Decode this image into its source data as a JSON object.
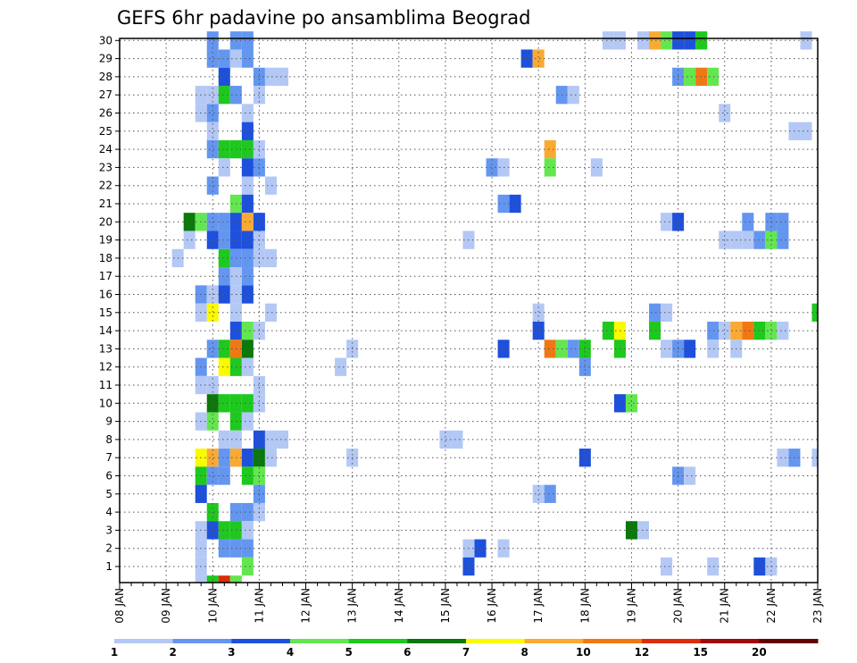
{
  "chart_data": {
    "type": "heatmap",
    "title": "GEFS 6hr padavine po ansamblima Beograd",
    "y_ticks": [
      "1",
      "2",
      "3",
      "4",
      "5",
      "6",
      "7",
      "8",
      "9",
      "10",
      "11",
      "12",
      "13",
      "14",
      "15",
      "16",
      "17",
      "18",
      "19",
      "20",
      "21",
      "22",
      "23",
      "24",
      "25",
      "26",
      "27",
      "28",
      "29",
      "30"
    ],
    "x_ticks": [
      "08 JAN",
      "09 JAN",
      "10 JAN",
      "11 JAN",
      "12 JAN",
      "13 JAN",
      "14 JAN",
      "15 JAN",
      "16 JAN",
      "17 JAN",
      "18 JAN",
      "19 JAN",
      "20 JAN",
      "21 JAN",
      "22 JAN",
      "23 JAN"
    ],
    "x_range": [
      "08 JAN 00UTC",
      "23 JAN 00UTC"
    ],
    "y_range": [
      1,
      30
    ],
    "grid": true,
    "colorbar": {
      "ticks": [
        "1",
        "2",
        "3",
        "4",
        "5",
        "6",
        "7",
        "8",
        "10",
        "12",
        "15",
        "20"
      ],
      "colors": [
        "#b4c8f5",
        "#6496f0",
        "#1e50dc",
        "#64e650",
        "#1ec81e",
        "#0a780a",
        "#fafa00",
        "#faaa32",
        "#f07814",
        "#dc2d0a",
        "#a00a0a",
        "#640000"
      ]
    },
    "cells": [
      {
        "d": "10 JAN 00",
        "m": 30,
        "c": 2
      },
      {
        "d": "10 JAN 12",
        "m": 30,
        "c": 2
      },
      {
        "d": "10 JAN 18",
        "m": 30,
        "c": 2
      },
      {
        "d": "18 JAN 12",
        "m": 30,
        "c": 1
      },
      {
        "d": "18 JAN 18",
        "m": 30,
        "c": 1
      },
      {
        "d": "19 JAN 06",
        "m": 30,
        "c": 1
      },
      {
        "d": "19 JAN 12",
        "m": 30,
        "c": 8
      },
      {
        "d": "19 JAN 18",
        "m": 30,
        "c": 4
      },
      {
        "d": "20 JAN 00",
        "m": 30,
        "c": 3
      },
      {
        "d": "20 JAN 06",
        "m": 30,
        "c": 3
      },
      {
        "d": "20 JAN 12",
        "m": 30,
        "c": 5
      },
      {
        "d": "22 JAN 18",
        "m": 30,
        "c": 1
      },
      {
        "d": "10 JAN 00",
        "m": 29,
        "c": 2
      },
      {
        "d": "10 JAN 06",
        "m": 29,
        "c": 2
      },
      {
        "d": "10 JAN 12",
        "m": 29,
        "c": 1
      },
      {
        "d": "10 JAN 18",
        "m": 29,
        "c": 2
      },
      {
        "d": "16 JAN 18",
        "m": 29,
        "c": 3
      },
      {
        "d": "17 JAN 00",
        "m": 29,
        "c": 8
      },
      {
        "d": "10 JAN 06",
        "m": 28,
        "c": 3
      },
      {
        "d": "11 JAN 00",
        "m": 28,
        "c": 2
      },
      {
        "d": "11 JAN 06",
        "m": 28,
        "c": 1
      },
      {
        "d": "11 JAN 12",
        "m": 28,
        "c": 1
      },
      {
        "d": "20 JAN 00",
        "m": 28,
        "c": 2
      },
      {
        "d": "20 JAN 06",
        "m": 28,
        "c": 4
      },
      {
        "d": "20 JAN 12",
        "m": 28,
        "c": 9
      },
      {
        "d": "20 JAN 18",
        "m": 28,
        "c": 4
      },
      {
        "d": "09 JAN 18",
        "m": 27,
        "c": 1
      },
      {
        "d": "10 JAN 00",
        "m": 27,
        "c": 1
      },
      {
        "d": "10 JAN 06",
        "m": 27,
        "c": 5
      },
      {
        "d": "10 JAN 12",
        "m": 27,
        "c": 2
      },
      {
        "d": "11 JAN 00",
        "m": 27,
        "c": 1
      },
      {
        "d": "17 JAN 12",
        "m": 27,
        "c": 2
      },
      {
        "d": "17 JAN 18",
        "m": 27,
        "c": 1
      },
      {
        "d": "09 JAN 18",
        "m": 26,
        "c": 1
      },
      {
        "d": "10 JAN 00",
        "m": 26,
        "c": 2
      },
      {
        "d": "10 JAN 18",
        "m": 26,
        "c": 1
      },
      {
        "d": "21 JAN 00",
        "m": 26,
        "c": 1
      },
      {
        "d": "10 JAN 00",
        "m": 25,
        "c": 1
      },
      {
        "d": "10 JAN 18",
        "m": 25,
        "c": 3
      },
      {
        "d": "22 JAN 12",
        "m": 25,
        "c": 1
      },
      {
        "d": "22 JAN 18",
        "m": 25,
        "c": 1
      },
      {
        "d": "10 JAN 00",
        "m": 24,
        "c": 2
      },
      {
        "d": "10 JAN 06",
        "m": 24,
        "c": 5
      },
      {
        "d": "10 JAN 12",
        "m": 24,
        "c": 5
      },
      {
        "d": "10 JAN 18",
        "m": 24,
        "c": 5
      },
      {
        "d": "11 JAN 00",
        "m": 24,
        "c": 1
      },
      {
        "d": "17 JAN 06",
        "m": 24,
        "c": 8
      },
      {
        "d": "10 JAN 06",
        "m": 23,
        "c": 1
      },
      {
        "d": "10 JAN 18",
        "m": 23,
        "c": 3
      },
      {
        "d": "11 JAN 00",
        "m": 23,
        "c": 2
      },
      {
        "d": "16 JAN 00",
        "m": 23,
        "c": 2
      },
      {
        "d": "16 JAN 06",
        "m": 23,
        "c": 1
      },
      {
        "d": "17 JAN 06",
        "m": 23,
        "c": 4
      },
      {
        "d": "18 JAN 06",
        "m": 23,
        "c": 1
      },
      {
        "d": "10 JAN 00",
        "m": 22,
        "c": 2
      },
      {
        "d": "10 JAN 18",
        "m": 22,
        "c": 1
      },
      {
        "d": "11 JAN 06",
        "m": 22,
        "c": 1
      },
      {
        "d": "10 JAN 12",
        "m": 21,
        "c": 4
      },
      {
        "d": "10 JAN 18",
        "m": 21,
        "c": 3
      },
      {
        "d": "16 JAN 06",
        "m": 21,
        "c": 2
      },
      {
        "d": "16 JAN 12",
        "m": 21,
        "c": 3
      },
      {
        "d": "09 JAN 12",
        "m": 20,
        "c": 6
      },
      {
        "d": "09 JAN 18",
        "m": 20,
        "c": 4
      },
      {
        "d": "10 JAN 00",
        "m": 20,
        "c": 2
      },
      {
        "d": "10 JAN 06",
        "m": 20,
        "c": 2
      },
      {
        "d": "10 JAN 12",
        "m": 20,
        "c": 3
      },
      {
        "d": "10 JAN 18",
        "m": 20,
        "c": 8
      },
      {
        "d": "11 JAN 00",
        "m": 20,
        "c": 3
      },
      {
        "d": "19 JAN 18",
        "m": 20,
        "c": 1
      },
      {
        "d": "20 JAN 00",
        "m": 20,
        "c": 3
      },
      {
        "d": "21 JAN 12",
        "m": 20,
        "c": 2
      },
      {
        "d": "22 JAN 00",
        "m": 20,
        "c": 2
      },
      {
        "d": "22 JAN 06",
        "m": 20,
        "c": 2
      },
      {
        "d": "09 JAN 12",
        "m": 19,
        "c": 1
      },
      {
        "d": "10 JAN 00",
        "m": 19,
        "c": 3
      },
      {
        "d": "10 JAN 06",
        "m": 19,
        "c": 2
      },
      {
        "d": "10 JAN 12",
        "m": 19,
        "c": 3
      },
      {
        "d": "10 JAN 18",
        "m": 19,
        "c": 3
      },
      {
        "d": "11 JAN 00",
        "m": 19,
        "c": 1
      },
      {
        "d": "15 JAN 12",
        "m": 19,
        "c": 1
      },
      {
        "d": "21 JAN 00",
        "m": 19,
        "c": 1
      },
      {
        "d": "21 JAN 06",
        "m": 19,
        "c": 1
      },
      {
        "d": "21 JAN 12",
        "m": 19,
        "c": 1
      },
      {
        "d": "21 JAN 18",
        "m": 19,
        "c": 2
      },
      {
        "d": "22 JAN 00",
        "m": 19,
        "c": 4
      },
      {
        "d": "22 JAN 06",
        "m": 19,
        "c": 2
      },
      {
        "d": "09 JAN 06",
        "m": 18,
        "c": 1
      },
      {
        "d": "10 JAN 06",
        "m": 18,
        "c": 5
      },
      {
        "d": "10 JAN 12",
        "m": 18,
        "c": 2
      },
      {
        "d": "10 JAN 18",
        "m": 18,
        "c": 2
      },
      {
        "d": "11 JAN 00",
        "m": 18,
        "c": 1
      },
      {
        "d": "11 JAN 06",
        "m": 18,
        "c": 1
      },
      {
        "d": "10 JAN 06",
        "m": 17,
        "c": 2
      },
      {
        "d": "10 JAN 12",
        "m": 17,
        "c": 1
      },
      {
        "d": "10 JAN 18",
        "m": 17,
        "c": 2
      },
      {
        "d": "09 JAN 18",
        "m": 16,
        "c": 2
      },
      {
        "d": "10 JAN 00",
        "m": 16,
        "c": 1
      },
      {
        "d": "10 JAN 06",
        "m": 16,
        "c": 3
      },
      {
        "d": "10 JAN 12",
        "m": 16,
        "c": 1
      },
      {
        "d": "10 JAN 18",
        "m": 16,
        "c": 3
      },
      {
        "d": "09 JAN 18",
        "m": 15,
        "c": 1
      },
      {
        "d": "10 JAN 00",
        "m": 15,
        "c": 7
      },
      {
        "d": "10 JAN 12",
        "m": 15,
        "c": 1
      },
      {
        "d": "11 JAN 06",
        "m": 15,
        "c": 1
      },
      {
        "d": "17 JAN 00",
        "m": 15,
        "c": 1
      },
      {
        "d": "19 JAN 12",
        "m": 15,
        "c": 2
      },
      {
        "d": "19 JAN 18",
        "m": 15,
        "c": 1
      },
      {
        "d": "23 JAN 00",
        "m": 15,
        "c": 5
      },
      {
        "d": "10 JAN 12",
        "m": 14,
        "c": 3
      },
      {
        "d": "10 JAN 18",
        "m": 14,
        "c": 4
      },
      {
        "d": "11 JAN 00",
        "m": 14,
        "c": 1
      },
      {
        "d": "17 JAN 00",
        "m": 14,
        "c": 3
      },
      {
        "d": "18 JAN 12",
        "m": 14,
        "c": 5
      },
      {
        "d": "18 JAN 18",
        "m": 14,
        "c": 7
      },
      {
        "d": "19 JAN 12",
        "m": 14,
        "c": 5
      },
      {
        "d": "20 JAN 18",
        "m": 14,
        "c": 2
      },
      {
        "d": "21 JAN 00",
        "m": 14,
        "c": 1
      },
      {
        "d": "21 JAN 06",
        "m": 14,
        "c": 8
      },
      {
        "d": "21 JAN 12",
        "m": 14,
        "c": 9
      },
      {
        "d": "21 JAN 18",
        "m": 14,
        "c": 5
      },
      {
        "d": "22 JAN 00",
        "m": 14,
        "c": 4
      },
      {
        "d": "22 JAN 06",
        "m": 14,
        "c": 1
      },
      {
        "d": "10 JAN 00",
        "m": 13,
        "c": 2
      },
      {
        "d": "10 JAN 06",
        "m": 13,
        "c": 5
      },
      {
        "d": "10 JAN 12",
        "m": 13,
        "c": 9
      },
      {
        "d": "10 JAN 18",
        "m": 13,
        "c": 6
      },
      {
        "d": "13 JAN 00",
        "m": 13,
        "c": 1
      },
      {
        "d": "16 JAN 06",
        "m": 13,
        "c": 3
      },
      {
        "d": "17 JAN 06",
        "m": 13,
        "c": 9
      },
      {
        "d": "17 JAN 12",
        "m": 13,
        "c": 4
      },
      {
        "d": "17 JAN 18",
        "m": 13,
        "c": 2
      },
      {
        "d": "18 JAN 00",
        "m": 13,
        "c": 5
      },
      {
        "d": "18 JAN 18",
        "m": 13,
        "c": 5
      },
      {
        "d": "19 JAN 18",
        "m": 13,
        "c": 1
      },
      {
        "d": "20 JAN 00",
        "m": 13,
        "c": 2
      },
      {
        "d": "20 JAN 06",
        "m": 13,
        "c": 3
      },
      {
        "d": "20 JAN 18",
        "m": 13,
        "c": 1
      },
      {
        "d": "21 JAN 06",
        "m": 13,
        "c": 1
      },
      {
        "d": "09 JAN 18",
        "m": 12,
        "c": 2
      },
      {
        "d": "10 JAN 06",
        "m": 12,
        "c": 7
      },
      {
        "d": "10 JAN 12",
        "m": 12,
        "c": 5
      },
      {
        "d": "10 JAN 18",
        "m": 12,
        "c": 1
      },
      {
        "d": "12 JAN 18",
        "m": 12,
        "c": 1
      },
      {
        "d": "18 JAN 00",
        "m": 12,
        "c": 2
      },
      {
        "d": "09 JAN 18",
        "m": 11,
        "c": 1
      },
      {
        "d": "10 JAN 00",
        "m": 11,
        "c": 1
      },
      {
        "d": "11 JAN 00",
        "m": 11,
        "c": 1
      },
      {
        "d": "10 JAN 00",
        "m": 10,
        "c": 6
      },
      {
        "d": "10 JAN 06",
        "m": 10,
        "c": 5
      },
      {
        "d": "10 JAN 12",
        "m": 10,
        "c": 5
      },
      {
        "d": "10 JAN 18",
        "m": 10,
        "c": 5
      },
      {
        "d": "11 JAN 00",
        "m": 10,
        "c": 1
      },
      {
        "d": "18 JAN 18",
        "m": 10,
        "c": 3
      },
      {
        "d": "19 JAN 00",
        "m": 10,
        "c": 4
      },
      {
        "d": "09 JAN 18",
        "m": 9,
        "c": 1
      },
      {
        "d": "10 JAN 00",
        "m": 9,
        "c": 4
      },
      {
        "d": "10 JAN 12",
        "m": 9,
        "c": 5
      },
      {
        "d": "10 JAN 18",
        "m": 9,
        "c": 1
      },
      {
        "d": "10 JAN 06",
        "m": 8,
        "c": 1
      },
      {
        "d": "10 JAN 12",
        "m": 8,
        "c": 1
      },
      {
        "d": "11 JAN 00",
        "m": 8,
        "c": 3
      },
      {
        "d": "11 JAN 06",
        "m": 8,
        "c": 1
      },
      {
        "d": "11 JAN 12",
        "m": 8,
        "c": 1
      },
      {
        "d": "15 JAN 00",
        "m": 8,
        "c": 1
      },
      {
        "d": "15 JAN 06",
        "m": 8,
        "c": 1
      },
      {
        "d": "09 JAN 18",
        "m": 7,
        "c": 7
      },
      {
        "d": "10 JAN 00",
        "m": 7,
        "c": 8
      },
      {
        "d": "10 JAN 06",
        "m": 7,
        "c": 2
      },
      {
        "d": "10 JAN 12",
        "m": 7,
        "c": 8
      },
      {
        "d": "10 JAN 18",
        "m": 7,
        "c": 3
      },
      {
        "d": "11 JAN 00",
        "m": 7,
        "c": 6
      },
      {
        "d": "11 JAN 06",
        "m": 7,
        "c": 1
      },
      {
        "d": "13 JAN 00",
        "m": 7,
        "c": 1
      },
      {
        "d": "18 JAN 00",
        "m": 7,
        "c": 3
      },
      {
        "d": "22 JAN 06",
        "m": 7,
        "c": 1
      },
      {
        "d": "22 JAN 12",
        "m": 7,
        "c": 2
      },
      {
        "d": "23 JAN 00",
        "m": 7,
        "c": 1
      },
      {
        "d": "09 JAN 18",
        "m": 6,
        "c": 5
      },
      {
        "d": "10 JAN 00",
        "m": 6,
        "c": 2
      },
      {
        "d": "10 JAN 06",
        "m": 6,
        "c": 2
      },
      {
        "d": "10 JAN 18",
        "m": 6,
        "c": 5
      },
      {
        "d": "11 JAN 00",
        "m": 6,
        "c": 4
      },
      {
        "d": "20 JAN 00",
        "m": 6,
        "c": 2
      },
      {
        "d": "20 JAN 06",
        "m": 6,
        "c": 1
      },
      {
        "d": "09 JAN 18",
        "m": 5,
        "c": 3
      },
      {
        "d": "11 JAN 00",
        "m": 5,
        "c": 2
      },
      {
        "d": "17 JAN 00",
        "m": 5,
        "c": 1
      },
      {
        "d": "17 JAN 06",
        "m": 5,
        "c": 2
      },
      {
        "d": "10 JAN 00",
        "m": 4,
        "c": 5
      },
      {
        "d": "10 JAN 12",
        "m": 4,
        "c": 2
      },
      {
        "d": "10 JAN 18",
        "m": 4,
        "c": 2
      },
      {
        "d": "11 JAN 00",
        "m": 4,
        "c": 1
      },
      {
        "d": "09 JAN 18",
        "m": 3,
        "c": 1
      },
      {
        "d": "10 JAN 00",
        "m": 3,
        "c": 3
      },
      {
        "d": "10 JAN 06",
        "m": 3,
        "c": 5
      },
      {
        "d": "10 JAN 12",
        "m": 3,
        "c": 5
      },
      {
        "d": "10 JAN 18",
        "m": 3,
        "c": 1
      },
      {
        "d": "19 JAN 00",
        "m": 3,
        "c": 6
      },
      {
        "d": "19 JAN 06",
        "m": 3,
        "c": 1
      },
      {
        "d": "09 JAN 18",
        "m": 2,
        "c": 1
      },
      {
        "d": "10 JAN 06",
        "m": 2,
        "c": 2
      },
      {
        "d": "10 JAN 12",
        "m": 2,
        "c": 2
      },
      {
        "d": "10 JAN 18",
        "m": 2,
        "c": 2
      },
      {
        "d": "15 JAN 12",
        "m": 2,
        "c": 1
      },
      {
        "d": "15 JAN 18",
        "m": 2,
        "c": 3
      },
      {
        "d": "16 JAN 06",
        "m": 2,
        "c": 1
      },
      {
        "d": "09 JAN 18",
        "m": 1,
        "c": 1
      },
      {
        "d": "10 JAN 18",
        "m": 1,
        "c": 4
      },
      {
        "d": "15 JAN 12",
        "m": 1,
        "c": 3
      },
      {
        "d": "19 JAN 18",
        "m": 1,
        "c": 1
      },
      {
        "d": "20 JAN 18",
        "m": 1,
        "c": 1
      },
      {
        "d": "21 JAN 18",
        "m": 1,
        "c": 3
      },
      {
        "d": "22 JAN 00",
        "m": 1,
        "c": 1
      },
      {
        "d": "09 JAN 18",
        "m": 0,
        "c": 1
      },
      {
        "d": "10 JAN 00",
        "m": 0,
        "c": 5
      },
      {
        "d": "10 JAN 06",
        "m": 0,
        "c": 10
      },
      {
        "d": "10 JAN 12",
        "m": 0,
        "c": 4
      }
    ]
  }
}
